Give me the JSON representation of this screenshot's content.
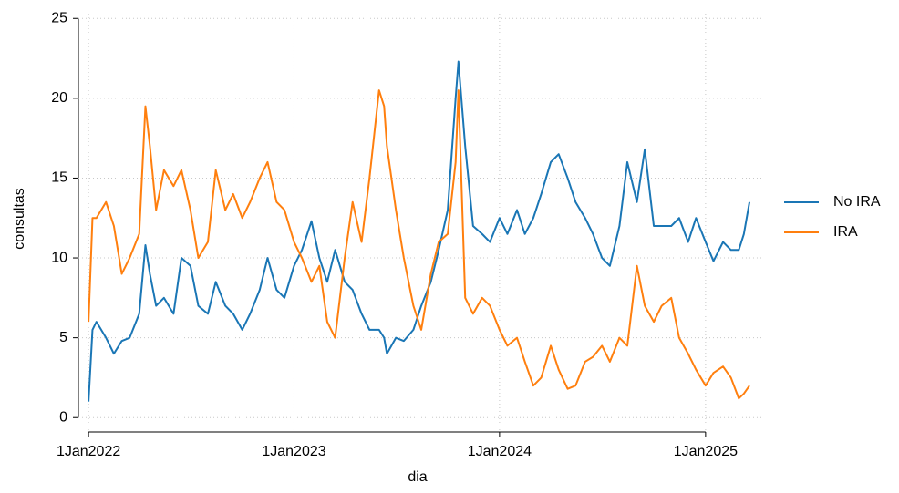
{
  "chart_data": {
    "type": "line",
    "x_label": "dia",
    "y_label": "consultas",
    "x": [
      "2022-01-01",
      "2022-01-08",
      "2022-01-15",
      "2022-02-01",
      "2022-02-15",
      "2022-03-01",
      "2022-03-15",
      "2022-04-01",
      "2022-04-12",
      "2022-04-20",
      "2022-05-01",
      "2022-05-15",
      "2022-06-01",
      "2022-06-15",
      "2022-07-01",
      "2022-07-15",
      "2022-08-01",
      "2022-08-15",
      "2022-09-01",
      "2022-09-15",
      "2022-10-01",
      "2022-10-15",
      "2022-11-01",
      "2022-11-15",
      "2022-12-01",
      "2022-12-15",
      "2023-01-01",
      "2023-01-15",
      "2023-02-01",
      "2023-02-15",
      "2023-03-01",
      "2023-03-15",
      "2023-04-01",
      "2023-04-15",
      "2023-05-01",
      "2023-05-15",
      "2023-06-01",
      "2023-06-10",
      "2023-06-15",
      "2023-07-01",
      "2023-07-15",
      "2023-08-01",
      "2023-08-15",
      "2023-09-01",
      "2023-09-15",
      "2023-10-01",
      "2023-10-15",
      "2023-10-20",
      "2023-11-01",
      "2023-11-15",
      "2023-12-01",
      "2023-12-15",
      "2024-01-01",
      "2024-01-15",
      "2024-02-01",
      "2024-02-15",
      "2024-03-01",
      "2024-03-15",
      "2024-04-01",
      "2024-04-15",
      "2024-05-01",
      "2024-05-15",
      "2024-06-01",
      "2024-06-15",
      "2024-07-01",
      "2024-07-15",
      "2024-08-01",
      "2024-08-15",
      "2024-09-01",
      "2024-09-15",
      "2024-10-01",
      "2024-10-15",
      "2024-11-01",
      "2024-11-15",
      "2024-12-01",
      "2024-12-15",
      "2025-01-01",
      "2025-01-15",
      "2025-02-01",
      "2025-02-15",
      "2025-03-01",
      "2025-03-10",
      "2025-03-20"
    ],
    "series": [
      {
        "name": "No IRA",
        "color": "#1a76b5",
        "values": [
          1,
          5.5,
          6,
          5,
          4,
          4.8,
          5,
          6.5,
          10.8,
          9,
          7,
          7.5,
          6.5,
          10,
          9.5,
          7,
          6.5,
          8.5,
          7,
          6.5,
          5.5,
          6.5,
          8,
          10,
          8,
          7.5,
          9.5,
          10.5,
          12.3,
          10,
          8.5,
          10.5,
          8.5,
          8,
          6.5,
          5.5,
          5.5,
          5,
          4,
          5,
          4.8,
          5.5,
          7,
          8.5,
          10.5,
          13,
          20,
          22.3,
          17,
          12,
          11.5,
          11,
          12.5,
          11.5,
          13,
          11.5,
          12.5,
          14,
          16,
          16.5,
          15,
          13.5,
          12.5,
          11.5,
          10,
          9.5,
          12,
          16,
          13.5,
          16.8,
          12,
          12,
          12,
          12.5,
          11,
          12.5,
          11,
          9.8,
          11,
          10.5,
          10.5,
          11.5,
          13.5
        ]
      },
      {
        "name": "IRA",
        "color": "#ff7f0e",
        "values": [
          6,
          12.5,
          12.5,
          13.5,
          12,
          9,
          10,
          11.5,
          19.5,
          17,
          13,
          15.5,
          14.5,
          15.5,
          13,
          10,
          11,
          15.5,
          13,
          14,
          12.5,
          13.5,
          15,
          16,
          13.5,
          13,
          11,
          10,
          8.5,
          9.5,
          6,
          5,
          10,
          13.5,
          11,
          15,
          20.5,
          19.5,
          17,
          13,
          10,
          7,
          5.5,
          9,
          11,
          11.5,
          16,
          20.5,
          7.5,
          6.5,
          7.5,
          7,
          5.5,
          4.5,
          5,
          3.5,
          2,
          2.5,
          4.5,
          3,
          1.8,
          2,
          3.5,
          3.8,
          4.5,
          3.5,
          5,
          4.5,
          9.5,
          7,
          6,
          7,
          7.5,
          5,
          4,
          3,
          2,
          2.8,
          3.2,
          2.5,
          1.2,
          1.5,
          2
        ]
      }
    ],
    "xlim": [
      "2021-12-14",
      "2025-04-10"
    ],
    "xticks": [
      {
        "value": "2022-01-01",
        "label": "1Jan2022"
      },
      {
        "value": "2023-01-01",
        "label": "1Jan2023"
      },
      {
        "value": "2024-01-01",
        "label": "1Jan2024"
      },
      {
        "value": "2025-01-01",
        "label": "1Jan2025"
      }
    ],
    "ylim": [
      -0.9,
      25.3
    ],
    "yticks": [
      0,
      5,
      10,
      15,
      20,
      25
    ],
    "grid": true,
    "legend_position": "right"
  }
}
